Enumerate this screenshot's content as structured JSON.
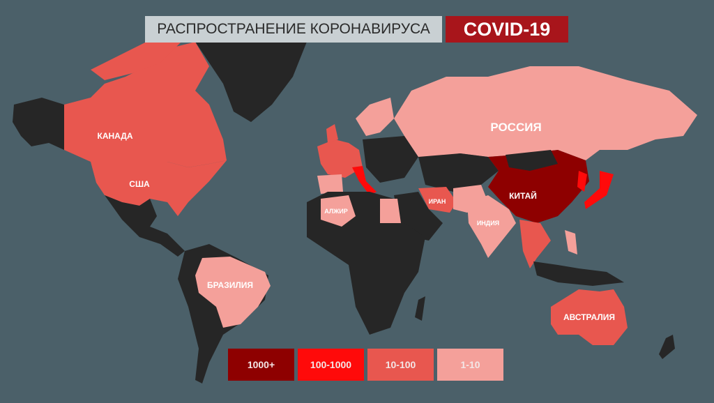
{
  "header": {
    "title": "РАСПРОСТРАНЕНИЕ КОРОНАВИРУСА",
    "badge": "COVID-19"
  },
  "colors": {
    "background": "#4b6069",
    "no_cases": "#262626",
    "level_1_10": "#f4a09a",
    "level_10_100": "#e8574f",
    "level_100_1000": "#ff0a0a",
    "level_1000_plus": "#8e0000",
    "title_bg": "#c9d0d3",
    "badge_bg": "#a8151b"
  },
  "legend": [
    {
      "label": "1000+",
      "color": "#8e0000"
    },
    {
      "label": "100-1000",
      "color": "#ff0a0a"
    },
    {
      "label": "10-100",
      "color": "#e8574f"
    },
    {
      "label": "1-10",
      "color": "#f4a09a"
    }
  ],
  "countries": {
    "canada": {
      "label": "КАНАДА",
      "level": "10-100"
    },
    "usa": {
      "label": "США",
      "level": "10-100"
    },
    "brazil": {
      "label": "БРАЗИЛИЯ",
      "level": "1-10"
    },
    "russia": {
      "label": "РОССИЯ",
      "level": "1-10"
    },
    "china": {
      "label": "КИТАЙ",
      "level": "1000+"
    },
    "iran": {
      "label": "ИРАН",
      "level": "10-100"
    },
    "india": {
      "label": "ИНДИЯ",
      "level": "1-10"
    },
    "algeria": {
      "label": "АЛЖИР",
      "level": "1-10"
    },
    "australia": {
      "label": "АВСТРАЛИЯ",
      "level": "10-100"
    }
  }
}
